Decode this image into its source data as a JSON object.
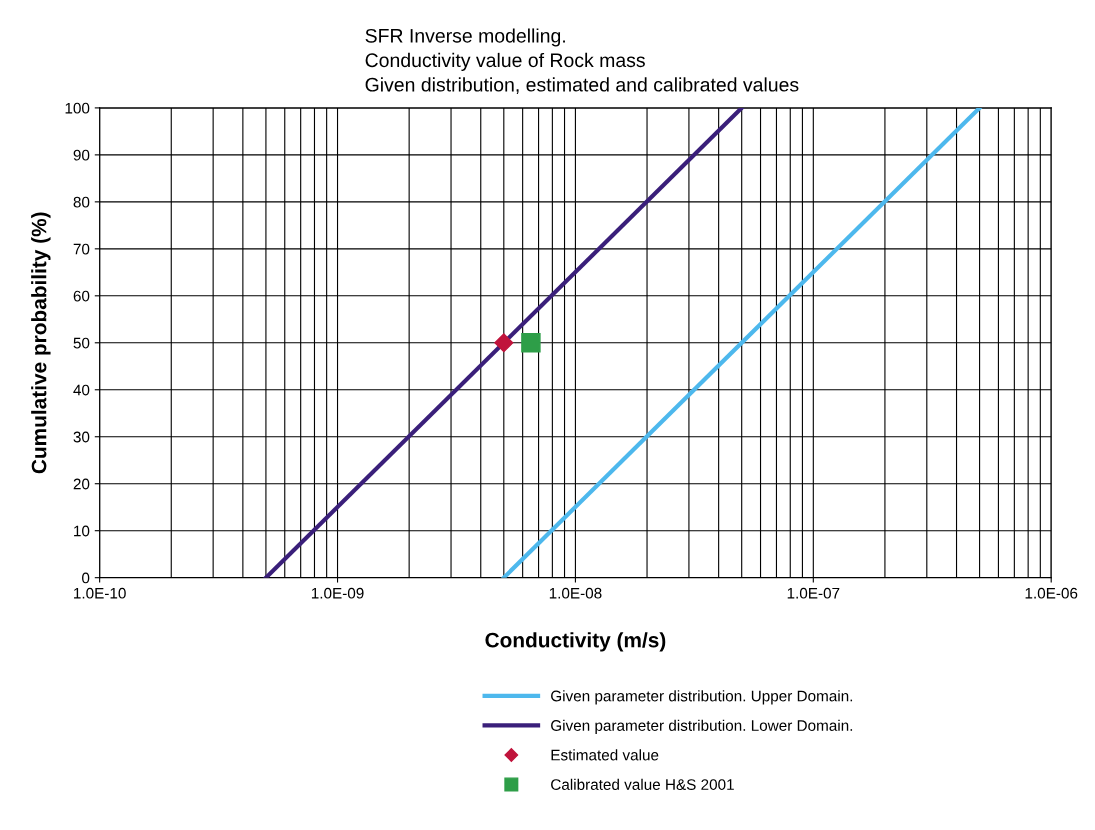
{
  "chart_data": {
    "type": "line",
    "title": "SFR Inverse modelling.\nConductivity value of Rock mass\nGiven distribution, estimated and calibrated values",
    "xlabel": "Conductivity (m/s)",
    "ylabel": "Cumulative probability (%)",
    "log": "x",
    "xlim": [
      1e-10,
      1e-06
    ],
    "xticks": [
      {
        "value": 1e-10,
        "label": "1.0E-10"
      },
      {
        "value": 1e-09,
        "label": "1.0E-09"
      },
      {
        "value": 1e-08,
        "label": "1.0E-08"
      },
      {
        "value": 1e-07,
        "label": "1.0E-07"
      },
      {
        "value": 1e-06,
        "label": "1.0E-06"
      }
    ],
    "ylim": [
      0,
      100
    ],
    "yticks": [
      0,
      10,
      20,
      30,
      40,
      50,
      60,
      70,
      80,
      90,
      100
    ],
    "grid": true,
    "legend": "bottom",
    "series": [
      {
        "name": "Given parameter distribution. Upper Domain.",
        "color": "#4db8ed",
        "x": [
          5e-09,
          5e-07
        ],
        "values": [
          0,
          100
        ],
        "marker": "none"
      },
      {
        "name": "Given parameter distribution. Lower Domain.",
        "color": "#3a1f7a",
        "x": [
          5e-10,
          5e-08
        ],
        "values": [
          0,
          100
        ],
        "marker": "none"
      },
      {
        "name": "Estimated value",
        "type": "scatter",
        "color": "#c0143c",
        "x": [
          5e-09
        ],
        "values": [
          50
        ],
        "marker": "diamond"
      },
      {
        "name": "Calibrated value H&S 2001",
        "type": "scatter",
        "color": "#2e9e48",
        "x": [
          6.5e-09
        ],
        "values": [
          50
        ],
        "marker": "square"
      }
    ]
  }
}
